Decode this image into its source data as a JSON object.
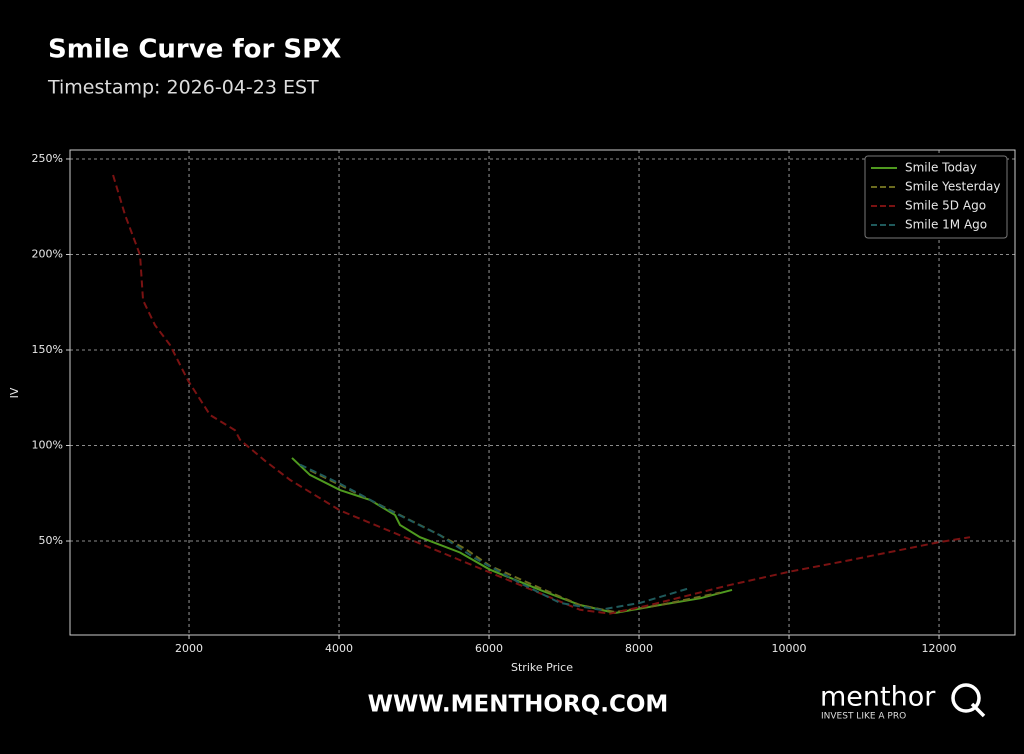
{
  "chart_data": {
    "type": "line",
    "title": "Smile Curve for SPX",
    "subtitle": "Timestamp: 2026-04-23 EST",
    "x_label": "Strike Price",
    "y_label": "IV",
    "xlim": [
      413,
      13013
    ],
    "ylim": [
      0.8,
      254.7
    ],
    "xticks": [
      2000,
      4000,
      6000,
      8000,
      10000,
      12000
    ],
    "yticks": [
      {
        "value": 50,
        "label": "50%"
      },
      {
        "value": 100,
        "label": "100%"
      },
      {
        "value": 150,
        "label": "150%"
      },
      {
        "value": 200,
        "label": "200%"
      },
      {
        "value": 250,
        "label": "250%"
      }
    ],
    "grid": true,
    "legend": "upper right",
    "series": [
      {
        "name": "Smile Today",
        "color": "#4f9a1f",
        "dash": false,
        "x": [
          3373,
          3613,
          4013,
          4413,
          4747,
          4813,
          5080,
          5613,
          6013,
          6680,
          7213,
          7680,
          8280,
          8813,
          9240
        ],
        "values": [
          93.5,
          84.6,
          76.7,
          71.5,
          63.6,
          58.4,
          52,
          44,
          35,
          24.4,
          16.5,
          12.3,
          16.5,
          20,
          24.4
        ]
      },
      {
        "name": "Smile Yesterday",
        "color": "#6b6b1f",
        "dash": true,
        "x": [
          3613,
          4147,
          4813,
          5347,
          5680,
          6013,
          6680,
          7213,
          7680,
          8280,
          9080
        ],
        "values": [
          87,
          76.7,
          63.6,
          53,
          46,
          37,
          25.4,
          16.5,
          12.8,
          16.5,
          23
        ]
      },
      {
        "name": "Smile 5D Ago",
        "color": "#7a1212",
        "dash": true,
        "x": [
          987,
          1147,
          1347,
          1387,
          1547,
          1747,
          1987,
          2280,
          2613,
          2680,
          3013,
          3347,
          4013,
          4813,
          5613,
          6413,
          7213,
          7613,
          8147,
          9213,
          10013,
          10813,
          12013,
          12413
        ],
        "values": [
          241.6,
          220.7,
          199.7,
          176,
          163,
          152.6,
          134,
          116,
          108,
          103,
          92,
          82,
          66,
          53,
          40,
          27,
          14,
          12,
          16.5,
          27,
          34,
          40,
          49.5,
          52
        ]
      },
      {
        "name": "Smile 1M Ago",
        "color": "#1f5a5c",
        "dash": true,
        "x": [
          3480,
          4013,
          4680,
          5347,
          5813,
          6413,
          6947,
          7480,
          8013,
          8680
        ],
        "values": [
          90,
          80,
          66,
          53,
          41,
          28,
          17.6,
          14,
          17.6,
          25.4
        ]
      }
    ]
  },
  "branding": {
    "website": "WWW.MENTHORQ.COM",
    "logo": "menthor",
    "logo_mark": "Q",
    "tagline": "INVEST LIKE A PRO"
  }
}
